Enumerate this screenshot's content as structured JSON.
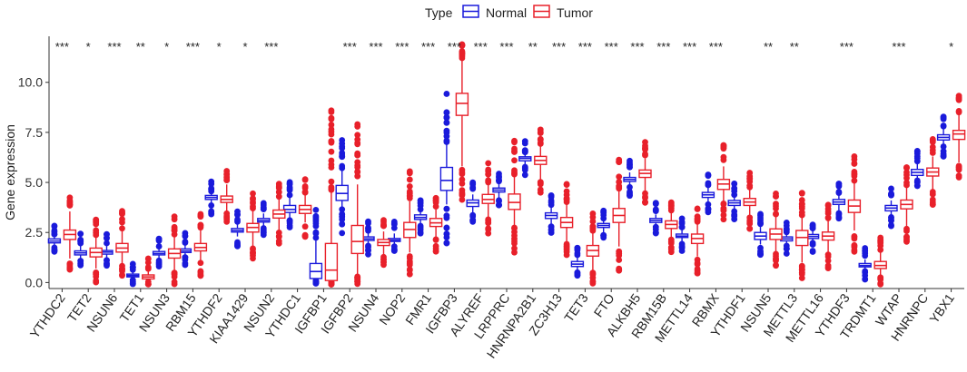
{
  "chart_data": {
    "type": "boxplot",
    "title": "",
    "xlabel": "",
    "ylabel": "Gene expression",
    "ylim": [
      -0.3,
      12.3
    ],
    "yticks": [
      0.0,
      2.5,
      5.0,
      7.5,
      10.0
    ],
    "ytick_labels": [
      "0.0",
      "2.5",
      "5.0",
      "7.5",
      "10.0"
    ],
    "legend": {
      "title": "Type",
      "position": "top-center",
      "entries": [
        {
          "name": "Normal",
          "color": "#1a1adb"
        },
        {
          "name": "Tumor",
          "color": "#e8202a"
        }
      ]
    },
    "genes": [
      "YTHDC2",
      "TET2",
      "NSUN6",
      "TET1",
      "NSUN3",
      "RBM15",
      "YTHDF2",
      "KIAA1429",
      "NSUN2",
      "YTHDC1",
      "IGFBP1",
      "IGFBP2",
      "NSUN4",
      "NOP2",
      "FMR1",
      "IGFBP3",
      "ALYREF",
      "LRPPRC",
      "HNRNPA2B1",
      "ZC3H13",
      "TET3",
      "FTO",
      "ALKBH5",
      "RBM15B",
      "METTL14",
      "RBMX",
      "YTHDF1",
      "NSUN5",
      "METTL3",
      "METTL16",
      "YTHDF3",
      "TRDMT1",
      "WTAP",
      "HNRNPC",
      "YBX1"
    ],
    "significance": [
      "***",
      "*",
      "***",
      "**",
      "*",
      "***",
      "*",
      "*",
      "***",
      "",
      "",
      "***",
      "***",
      "***",
      "***",
      "***",
      "***",
      "***",
      "**",
      "***",
      "***",
      "***",
      "***",
      "***",
      "***",
      "***",
      "",
      "**",
      "**",
      "",
      "***",
      "",
      "***",
      "",
      "*"
    ],
    "series": [
      {
        "name": "Normal",
        "boxes": [
          [
            1.75,
            1.98,
            2.07,
            2.18,
            2.4
          ],
          [
            1.2,
            1.38,
            1.48,
            1.58,
            1.85
          ],
          [
            1.25,
            1.42,
            1.52,
            1.6,
            1.85
          ],
          [
            0.15,
            0.28,
            0.35,
            0.42,
            0.6
          ],
          [
            1.2,
            1.38,
            1.45,
            1.55,
            1.75
          ],
          [
            1.3,
            1.5,
            1.58,
            1.68,
            1.95
          ],
          [
            3.9,
            4.15,
            4.25,
            4.35,
            4.55
          ],
          [
            2.3,
            2.52,
            2.6,
            2.7,
            3.0
          ],
          [
            2.8,
            3.02,
            3.1,
            3.2,
            3.45
          ],
          [
            3.2,
            3.5,
            3.65,
            3.85,
            4.3
          ],
          [
            0.1,
            0.2,
            0.55,
            0.95,
            2.1
          ],
          [
            3.7,
            4.1,
            4.45,
            4.85,
            5.6
          ],
          [
            1.9,
            2.1,
            2.18,
            2.28,
            2.5
          ],
          [
            1.85,
            2.05,
            2.12,
            2.2,
            2.45
          ],
          [
            2.9,
            3.15,
            3.25,
            3.38,
            3.65
          ],
          [
            3.9,
            4.6,
            5.1,
            5.75,
            6.9
          ],
          [
            3.5,
            3.8,
            3.98,
            4.12,
            4.4
          ],
          [
            4.2,
            4.52,
            4.62,
            4.72,
            4.95
          ],
          [
            5.8,
            6.08,
            6.2,
            6.28,
            6.5
          ],
          [
            2.9,
            3.2,
            3.35,
            3.48,
            3.8
          ],
          [
            0.6,
            0.8,
            0.92,
            1.05,
            1.3
          ],
          [
            2.5,
            2.75,
            2.85,
            2.95,
            3.2
          ],
          [
            4.8,
            5.05,
            5.15,
            5.25,
            5.5
          ],
          [
            2.8,
            3.0,
            3.1,
            3.2,
            3.4
          ],
          [
            2.05,
            2.25,
            2.32,
            2.42,
            2.65
          ],
          [
            4.0,
            4.25,
            4.38,
            4.5,
            4.8
          ],
          [
            3.6,
            3.85,
            3.98,
            4.1,
            4.35
          ],
          [
            1.9,
            2.15,
            2.32,
            2.5,
            2.8
          ],
          [
            1.9,
            2.08,
            2.18,
            2.28,
            2.5
          ],
          [
            2.0,
            2.2,
            2.3,
            2.4,
            2.6
          ],
          [
            3.6,
            3.9,
            4.02,
            4.15,
            4.4
          ],
          [
            0.6,
            0.78,
            0.85,
            0.95,
            1.15
          ],
          [
            3.3,
            3.58,
            3.72,
            3.85,
            4.1
          ],
          [
            5.1,
            5.35,
            5.5,
            5.65,
            5.95
          ],
          [
            6.8,
            7.12,
            7.25,
            7.38,
            7.7
          ]
        ]
      },
      {
        "name": "Tumor",
        "boxes": [
          [
            1.2,
            2.15,
            2.4,
            2.62,
            3.55
          ],
          [
            0.7,
            1.28,
            1.5,
            1.72,
            2.35
          ],
          [
            0.9,
            1.52,
            1.72,
            1.95,
            2.65
          ],
          [
            0.05,
            0.18,
            0.28,
            0.38,
            0.65
          ],
          [
            0.6,
            1.22,
            1.45,
            1.68,
            2.3
          ],
          [
            1.0,
            1.58,
            1.75,
            1.95,
            2.6
          ],
          [
            3.5,
            4.0,
            4.15,
            4.32,
            4.9
          ],
          [
            1.8,
            2.52,
            2.75,
            2.95,
            3.65
          ],
          [
            2.5,
            3.22,
            3.42,
            3.62,
            4.2
          ],
          [
            3.0,
            3.45,
            3.65,
            3.85,
            4.4
          ],
          [
            0.05,
            0.1,
            0.62,
            1.95,
            4.6
          ],
          [
            0.3,
            1.45,
            2.05,
            2.85,
            4.9
          ],
          [
            1.4,
            1.85,
            2.0,
            2.15,
            2.55
          ],
          [
            1.5,
            2.25,
            2.65,
            3.0,
            4.05
          ],
          [
            2.2,
            2.8,
            2.98,
            3.2,
            3.75
          ],
          [
            5.8,
            8.35,
            8.95,
            9.45,
            11.2
          ],
          [
            3.2,
            3.95,
            4.15,
            4.4,
            5.0
          ],
          [
            2.8,
            3.65,
            4.0,
            4.42,
            5.4
          ],
          [
            5.1,
            5.9,
            6.1,
            6.3,
            6.8
          ],
          [
            2.0,
            2.75,
            3.0,
            3.25,
            3.95
          ],
          [
            0.5,
            1.32,
            1.6,
            1.85,
            2.55
          ],
          [
            1.8,
            3.0,
            3.35,
            3.7,
            4.6
          ],
          [
            4.5,
            5.25,
            5.45,
            5.62,
            6.2
          ],
          [
            2.2,
            2.7,
            2.9,
            3.08,
            3.6
          ],
          [
            1.3,
            1.95,
            2.2,
            2.42,
            3.0
          ],
          [
            4.0,
            4.65,
            4.92,
            5.15,
            5.8
          ],
          [
            3.3,
            3.85,
            4.02,
            4.2,
            4.75
          ],
          [
            1.5,
            2.15,
            2.42,
            2.68,
            3.4
          ],
          [
            1.0,
            1.85,
            2.25,
            2.6,
            3.3
          ],
          [
            1.4,
            2.12,
            2.32,
            2.52,
            3.1
          ],
          [
            2.6,
            3.5,
            3.82,
            4.12,
            5.0
          ],
          [
            0.3,
            0.7,
            0.85,
            1.05,
            1.55
          ],
          [
            2.8,
            3.68,
            3.9,
            4.12,
            4.8
          ],
          [
            4.6,
            5.32,
            5.52,
            5.72,
            6.3
          ],
          [
            6.0,
            7.15,
            7.42,
            7.6,
            8.4
          ]
        ]
      }
    ]
  }
}
